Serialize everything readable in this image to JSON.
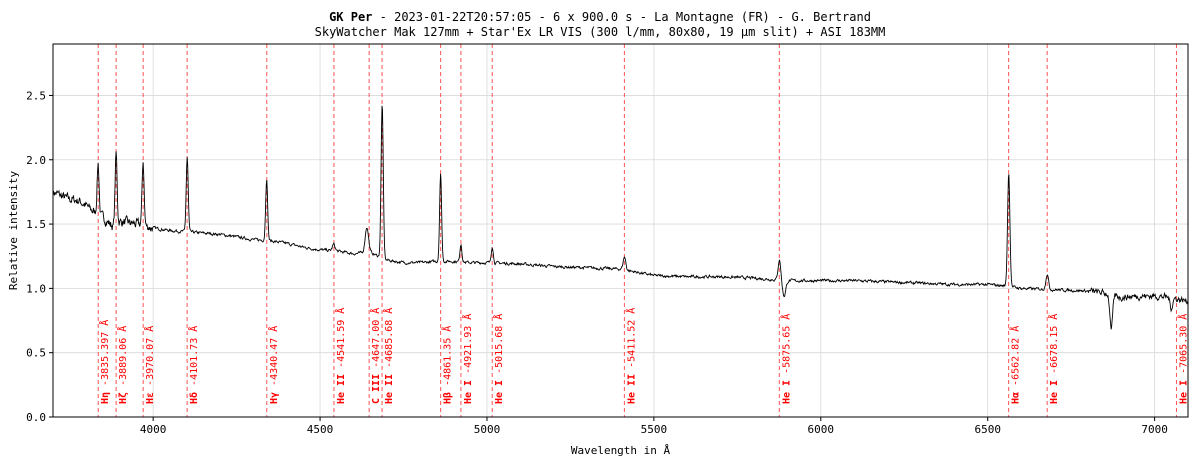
{
  "title": {
    "target": "GK Per",
    "rest": " - 2023-01-22T20:57:05 - 6 x 900.0 s - La Montagne (FR) - G. Bertrand",
    "subtitle": "SkyWatcher Mak 127mm + Star'Ex LR VIS (300 l/mm, 80x80, 19 µm slit) + ASI 183MM"
  },
  "chart_data": {
    "type": "line",
    "xlabel": "Wavelength in Å",
    "ylabel": "Relative intensity",
    "xlim": [
      3700,
      7100
    ],
    "ylim": [
      0.0,
      2.9
    ],
    "grid": true,
    "x_ticks": [
      4000,
      4500,
      5000,
      5500,
      6000,
      6500,
      7000
    ],
    "y_ticks": [
      0.0,
      0.5,
      1.0,
      1.5,
      2.0,
      2.5
    ],
    "x_tick_labels": [
      "4000",
      "4500",
      "5000",
      "5500",
      "6000",
      "6500",
      "7000"
    ],
    "y_tick_labels": [
      "0.0",
      "0.5",
      "1.0",
      "1.5",
      "2.0",
      "2.5"
    ],
    "line_color": "#000000",
    "marker_color": "#ff0000",
    "continuum": [
      [
        3700,
        1.75
      ],
      [
        3740,
        1.7
      ],
      [
        3780,
        1.68
      ],
      [
        3820,
        1.6
      ],
      [
        3850,
        1.55
      ],
      [
        3880,
        1.48
      ],
      [
        3900,
        1.52
      ],
      [
        3950,
        1.5
      ],
      [
        4000,
        1.47
      ],
      [
        4050,
        1.45
      ],
      [
        4100,
        1.44
      ],
      [
        4150,
        1.43
      ],
      [
        4200,
        1.42
      ],
      [
        4250,
        1.4
      ],
      [
        4300,
        1.38
      ],
      [
        4350,
        1.37
      ],
      [
        4400,
        1.35
      ],
      [
        4450,
        1.32
      ],
      [
        4500,
        1.3
      ],
      [
        4550,
        1.29
      ],
      [
        4600,
        1.27
      ],
      [
        4650,
        1.28
      ],
      [
        4700,
        1.22
      ],
      [
        4750,
        1.2
      ],
      [
        4800,
        1.2
      ],
      [
        4850,
        1.21
      ],
      [
        4900,
        1.21
      ],
      [
        4950,
        1.2
      ],
      [
        5000,
        1.2
      ],
      [
        5100,
        1.19
      ],
      [
        5200,
        1.17
      ],
      [
        5300,
        1.16
      ],
      [
        5400,
        1.15
      ],
      [
        5500,
        1.1
      ],
      [
        5600,
        1.09
      ],
      [
        5700,
        1.09
      ],
      [
        5800,
        1.08
      ],
      [
        5900,
        1.06
      ],
      [
        6000,
        1.06
      ],
      [
        6100,
        1.06
      ],
      [
        6200,
        1.05
      ],
      [
        6300,
        1.04
      ],
      [
        6400,
        1.03
      ],
      [
        6500,
        1.03
      ],
      [
        6550,
        1.02
      ],
      [
        6600,
        1.0
      ],
      [
        6700,
        0.99
      ],
      [
        6800,
        0.98
      ],
      [
        6860,
        0.96
      ],
      [
        6900,
        0.93
      ],
      [
        6950,
        0.94
      ],
      [
        7000,
        0.94
      ],
      [
        7050,
        0.93
      ],
      [
        7100,
        0.9
      ]
    ],
    "emission_lines": [
      {
        "x": 3835,
        "peak": 0.4,
        "width": 3
      },
      {
        "x": 3889,
        "peak": 0.55,
        "width": 3
      },
      {
        "x": 3970,
        "peak": 0.5,
        "width": 3
      },
      {
        "x": 4102,
        "peak": 0.58,
        "width": 3
      },
      {
        "x": 4340,
        "peak": 0.48,
        "width": 3
      },
      {
        "x": 4541,
        "peak": 0.05,
        "width": 4
      },
      {
        "x": 4640,
        "peak": 0.2,
        "width": 5
      },
      {
        "x": 4686,
        "peak": 1.2,
        "width": 3.2
      },
      {
        "x": 4861,
        "peak": 0.68,
        "width": 3
      },
      {
        "x": 4922,
        "peak": 0.14,
        "width": 3
      },
      {
        "x": 5016,
        "peak": 0.13,
        "width": 3
      },
      {
        "x": 5412,
        "peak": 0.1,
        "width": 4
      },
      {
        "x": 5876,
        "peak": 0.16,
        "width": 4
      },
      {
        "x": 6563,
        "peak": 0.88,
        "width": 3.5
      },
      {
        "x": 6678,
        "peak": 0.12,
        "width": 4
      }
    ],
    "absorption_lines": [
      {
        "x": 5890,
        "depth": 0.12,
        "width": 5
      },
      {
        "x": 6870,
        "depth": 0.28,
        "width": 4
      },
      {
        "x": 7050,
        "depth": 0.08,
        "width": 4
      }
    ],
    "line_markers": [
      {
        "x": 3835.397,
        "element": "Hη",
        "wavelength": " -3835.397 Å"
      },
      {
        "x": 3889.06,
        "element": "Hζ",
        "wavelength": " -3889.06 Å"
      },
      {
        "x": 3970.07,
        "element": "Hε",
        "wavelength": " -3970.07 Å"
      },
      {
        "x": 4101.73,
        "element": "Hδ",
        "wavelength": " -4101.73 Å"
      },
      {
        "x": 4340.47,
        "element": "Hγ",
        "wavelength": " -4340.47 Å"
      },
      {
        "x": 4541.59,
        "element": "He II",
        "wavelength": " -4541.59 Å"
      },
      {
        "x": 4647.0,
        "element": "C III",
        "wavelength": " -4647.00 Å"
      },
      {
        "x": 4685.68,
        "element": "He II",
        "wavelength": " -4685.68 Å"
      },
      {
        "x": 4861.35,
        "element": "Hβ",
        "wavelength": " -4861.35 Å"
      },
      {
        "x": 4921.93,
        "element": "He I",
        "wavelength": " -4921.93 Å"
      },
      {
        "x": 5015.68,
        "element": "He I",
        "wavelength": " -5015.68 Å"
      },
      {
        "x": 5411.52,
        "element": "He II",
        "wavelength": " -5411.52 Å"
      },
      {
        "x": 5875.65,
        "element": "He I",
        "wavelength": " -5875.65 Å"
      },
      {
        "x": 6562.82,
        "element": "Hα",
        "wavelength": " -6562.82 Å"
      },
      {
        "x": 6678.15,
        "element": "He I",
        "wavelength": " -6678.15 Å"
      },
      {
        "x": 7065.3,
        "element": "He I",
        "wavelength": " -7065.30 Å"
      }
    ]
  }
}
